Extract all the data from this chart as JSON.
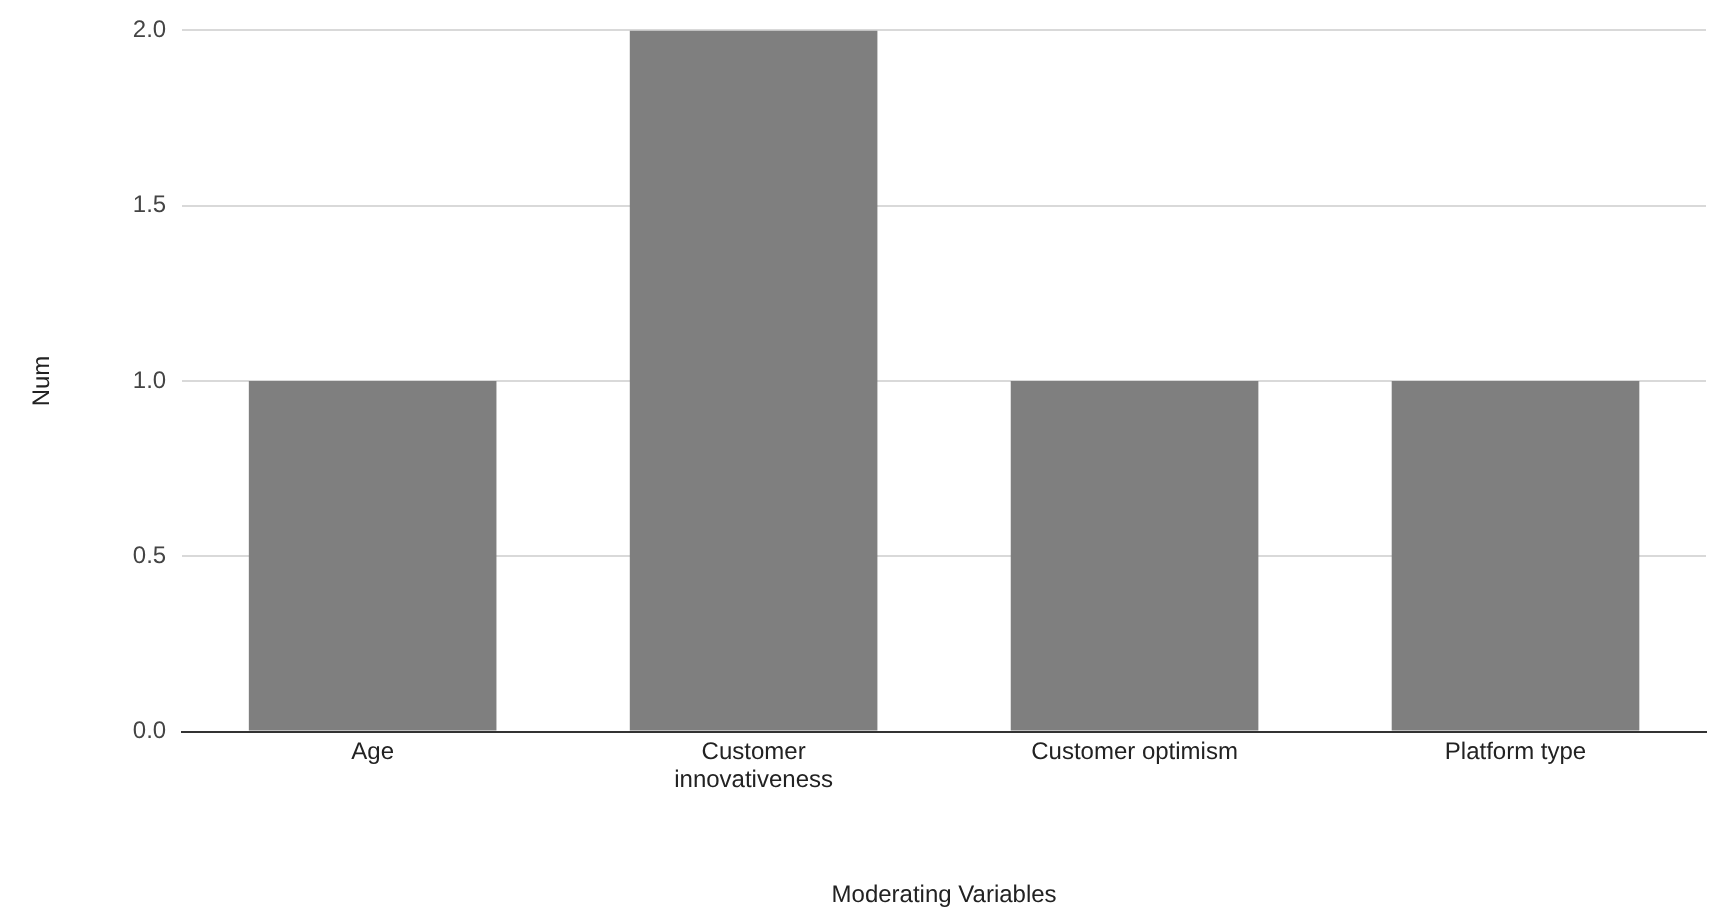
{
  "chart_data": {
    "type": "bar",
    "xlabel": "Moderating Variables",
    "ylabel": "Num",
    "categories": [
      "Age",
      "Customer innovativeness",
      "Customer optimism",
      "Platform type"
    ],
    "values": [
      1,
      2,
      1,
      1
    ],
    "color": "#7f7f7f",
    "ylim": [
      0,
      2
    ],
    "yticks": [
      {
        "value": 0,
        "label": "0.0"
      },
      {
        "value": 0.5,
        "label": "0.5"
      },
      {
        "value": 1,
        "label": "1.0"
      },
      {
        "value": 1.5,
        "label": "1.5"
      },
      {
        "value": 2,
        "label": "2.0"
      }
    ],
    "grid": "y",
    "legend": false
  }
}
